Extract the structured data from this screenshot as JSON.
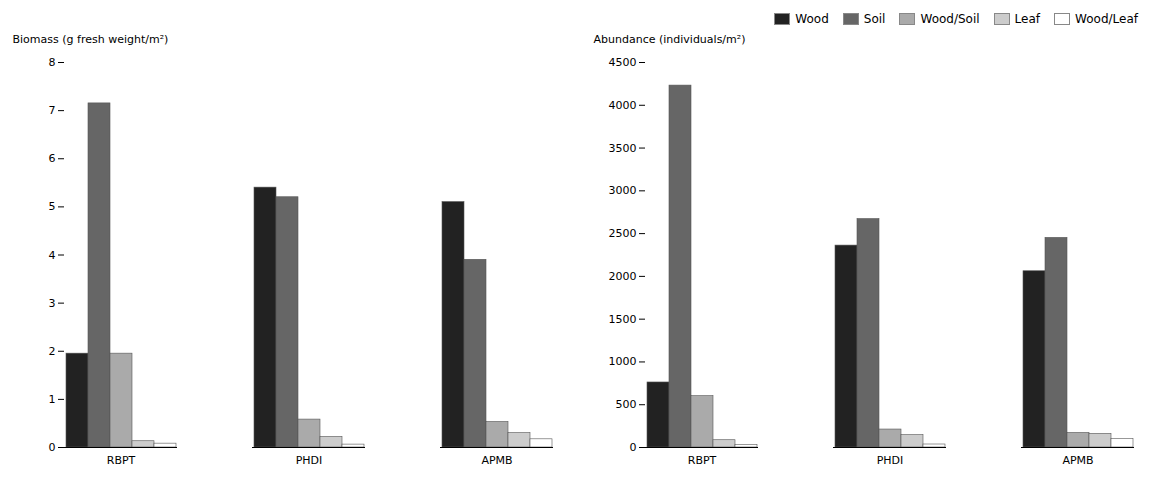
{
  "chart_data": [
    {
      "type": "bar",
      "categories": [
        "RBPT",
        "PHDI",
        "APMB"
      ],
      "ylabel": "Biomass (g fresh weight/m²)",
      "series": [
        {
          "name": "Wood",
          "color": "#222222",
          "values": [
            1.95,
            5.4,
            5.1
          ]
        },
        {
          "name": "Soil",
          "color": "#666666",
          "values": [
            7.15,
            5.2,
            3.9
          ]
        },
        {
          "name": "Wood/Soil",
          "color": "#aaaaaa",
          "values": [
            1.95,
            0.58,
            0.53
          ]
        },
        {
          "name": "Leaf",
          "color": "#cccccc",
          "values": [
            0.13,
            0.22,
            0.3
          ]
        },
        {
          "name": "Wood/Leaf",
          "color": "#ffffff",
          "values": [
            0.08,
            0.06,
            0.17
          ]
        }
      ],
      "ylim": [
        0,
        8
      ],
      "yticks": [
        0,
        1,
        2,
        3,
        4,
        5,
        6,
        7,
        8
      ],
      "grid": false
    },
    {
      "type": "bar",
      "categories": [
        "RBPT",
        "PHDI",
        "APMB"
      ],
      "ylabel": "Abundance (individuals/m²)",
      "series": [
        {
          "name": "Wood",
          "color": "#222222",
          "values": [
            760,
            2360,
            2060
          ]
        },
        {
          "name": "Soil",
          "color": "#666666",
          "values": [
            4230,
            2670,
            2450
          ]
        },
        {
          "name": "Wood/Soil",
          "color": "#aaaaaa",
          "values": [
            600,
            210,
            170
          ]
        },
        {
          "name": "Leaf",
          "color": "#cccccc",
          "values": [
            85,
            145,
            160
          ]
        },
        {
          "name": "Wood/Leaf",
          "color": "#ffffff",
          "values": [
            30,
            35,
            100
          ]
        }
      ],
      "ylim": [
        0,
        4500
      ],
      "yticks": [
        0,
        500,
        1000,
        1500,
        2000,
        2500,
        3000,
        3500,
        4000,
        4500
      ],
      "grid": false,
      "legend": "upper right"
    }
  ]
}
